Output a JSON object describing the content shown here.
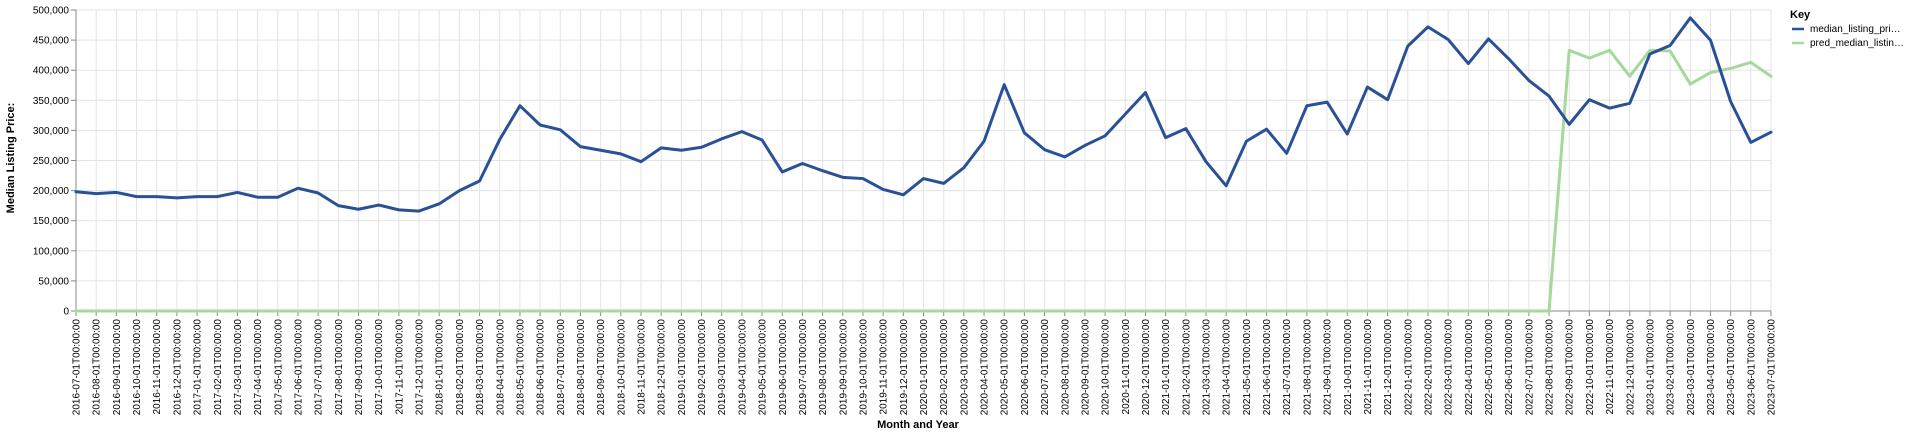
{
  "chart_data": {
    "type": "line",
    "xlabel": "Month and Year",
    "ylabel": "Median Listing Price:",
    "ylim": [
      0,
      500000
    ],
    "y_ticks": [
      0,
      50000,
      100000,
      150000,
      200000,
      250000,
      300000,
      350000,
      400000,
      450000,
      500000
    ],
    "y_tick_labels": [
      "0",
      "50,000",
      "100,000",
      "150,000",
      "200,000",
      "250,000",
      "300,000",
      "350,000",
      "400,000",
      "450,000",
      "500,000"
    ],
    "grid": true,
    "legend": {
      "title": "Key",
      "placement": "top-right"
    },
    "x": [
      "2016-07-01T00:00:00",
      "2016-08-01T00:00:00",
      "2016-09-01T00:00:00",
      "2016-10-01T00:00:00",
      "2016-11-01T00:00:00",
      "2016-12-01T00:00:00",
      "2017-01-01T00:00:00",
      "2017-02-01T00:00:00",
      "2017-03-01T00:00:00",
      "2017-04-01T00:00:00",
      "2017-05-01T00:00:00",
      "2017-06-01T00:00:00",
      "2017-07-01T00:00:00",
      "2017-08-01T00:00:00",
      "2017-09-01T00:00:00",
      "2017-10-01T00:00:00",
      "2017-11-01T00:00:00",
      "2017-12-01T00:00:00",
      "2018-01-01T00:00:00",
      "2018-02-01T00:00:00",
      "2018-03-01T00:00:00",
      "2018-04-01T00:00:00",
      "2018-05-01T00:00:00",
      "2018-06-01T00:00:00",
      "2018-07-01T00:00:00",
      "2018-08-01T00:00:00",
      "2018-09-01T00:00:00",
      "2018-10-01T00:00:00",
      "2018-11-01T00:00:00",
      "2018-12-01T00:00:00",
      "2019-01-01T00:00:00",
      "2019-02-01T00:00:00",
      "2019-03-01T00:00:00",
      "2019-04-01T00:00:00",
      "2019-05-01T00:00:00",
      "2019-06-01T00:00:00",
      "2019-07-01T00:00:00",
      "2019-08-01T00:00:00",
      "2019-09-01T00:00:00",
      "2019-10-01T00:00:00",
      "2019-11-01T00:00:00",
      "2019-12-01T00:00:00",
      "2020-01-01T00:00:00",
      "2020-02-01T00:00:00",
      "2020-03-01T00:00:00",
      "2020-04-01T00:00:00",
      "2020-05-01T00:00:00",
      "2020-06-01T00:00:00",
      "2020-07-01T00:00:00",
      "2020-08-01T00:00:00",
      "2020-09-01T00:00:00",
      "2020-10-01T00:00:00",
      "2020-11-01T00:00:00",
      "2020-12-01T00:00:00",
      "2021-01-01T00:00:00",
      "2021-02-01T00:00:00",
      "2021-03-01T00:00:00",
      "2021-04-01T00:00:00",
      "2021-05-01T00:00:00",
      "2021-06-01T00:00:00",
      "2021-07-01T00:00:00",
      "2021-08-01T00:00:00",
      "2021-09-01T00:00:00",
      "2021-10-01T00:00:00",
      "2021-11-01T00:00:00",
      "2021-12-01T00:00:00",
      "2022-01-01T00:00:00",
      "2022-02-01T00:00:00",
      "2022-03-01T00:00:00",
      "2022-04-01T00:00:00",
      "2022-05-01T00:00:00",
      "2022-06-01T00:00:00",
      "2022-07-01T00:00:00",
      "2022-08-01T00:00:00",
      "2022-09-01T00:00:00",
      "2022-10-01T00:00:00",
      "2022-11-01T00:00:00",
      "2022-12-01T00:00:00",
      "2023-01-01T00:00:00",
      "2023-02-01T00:00:00",
      "2023-03-01T00:00:00",
      "2023-04-01T00:00:00",
      "2023-05-01T00:00:00",
      "2023-06-01T00:00:00",
      "2023-07-01T00:00:00"
    ],
    "series": [
      {
        "name": "median_listing_pri…",
        "color": "#2a5196",
        "values": [
          198000,
          195000,
          197000,
          190000,
          190000,
          188000,
          190000,
          190000,
          197000,
          189000,
          189000,
          204000,
          196000,
          175000,
          169000,
          176000,
          168000,
          166000,
          178000,
          200000,
          216000,
          285000,
          341000,
          309000,
          301000,
          273000,
          267000,
          261000,
          248000,
          271000,
          267000,
          272000,
          286000,
          298000,
          284000,
          231000,
          245000,
          233000,
          222000,
          220000,
          202000,
          193000,
          220000,
          212000,
          238000,
          282000,
          376000,
          296000,
          268000,
          256000,
          275000,
          291000,
          327000,
          363000,
          288000,
          303000,
          248000,
          208000,
          282000,
          302000,
          262000,
          341000,
          347000,
          294000,
          372000,
          351000,
          440000,
          472000,
          451000,
          411000,
          452000,
          419000,
          383000,
          357000,
          310000,
          351000,
          337000,
          345000,
          427000,
          441000,
          487000,
          450000,
          348000,
          280000,
          297000
        ]
      },
      {
        "name": "pred_median_listin…",
        "color": "#a5d99b",
        "values": [
          0,
          0,
          0,
          0,
          0,
          0,
          0,
          0,
          0,
          0,
          0,
          0,
          0,
          0,
          0,
          0,
          0,
          0,
          0,
          0,
          0,
          0,
          0,
          0,
          0,
          0,
          0,
          0,
          0,
          0,
          0,
          0,
          0,
          0,
          0,
          0,
          0,
          0,
          0,
          0,
          0,
          0,
          0,
          0,
          0,
          0,
          0,
          0,
          0,
          0,
          0,
          0,
          0,
          0,
          0,
          0,
          0,
          0,
          0,
          0,
          0,
          0,
          0,
          0,
          0,
          0,
          0,
          0,
          0,
          0,
          0,
          0,
          0,
          0,
          433000,
          420000,
          433000,
          390000,
          433000,
          432000,
          377000,
          396000,
          403000,
          413000,
          390000
        ]
      }
    ]
  }
}
